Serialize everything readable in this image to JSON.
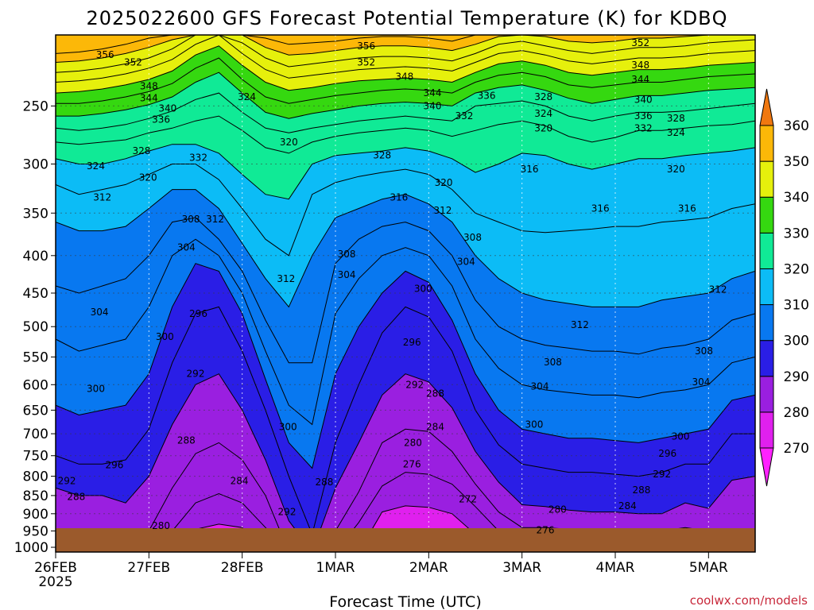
{
  "chart_data": {
    "type": "heatmap",
    "title": "2025022600 GFS Forecast Potential Temperature (K) for KDBQ",
    "xlabel": "Forecast Time (UTC)",
    "ylabel": "",
    "credit": "coolwx.com/models",
    "x_ticks": [
      "26FEB",
      "27FEB",
      "28FEB",
      "1MAR",
      "2MAR",
      "3MAR",
      "4MAR",
      "5MAR"
    ],
    "x_year_label": "2025",
    "x_range_days": [
      0,
      7.5
    ],
    "y_ticks": [
      250,
      300,
      350,
      400,
      450,
      500,
      550,
      600,
      650,
      700,
      750,
      800,
      850,
      900,
      950,
      1000
    ],
    "y_range_hpa": [
      200,
      1015
    ],
    "colorbar": {
      "ticks": [
        270,
        280,
        290,
        300,
        310,
        320,
        330,
        340,
        350,
        360
      ],
      "bins": [
        {
          "from": 260,
          "to": 270,
          "color": "#ff22ff"
        },
        {
          "from": 270,
          "to": 280,
          "color": "#e020ee"
        },
        {
          "from": 280,
          "to": 290,
          "color": "#9a1fe0"
        },
        {
          "from": 290,
          "to": 300,
          "color": "#2a1ee6"
        },
        {
          "from": 300,
          "to": 310,
          "color": "#0878f0"
        },
        {
          "from": 310,
          "to": 320,
          "color": "#0cbcf6"
        },
        {
          "from": 320,
          "to": 330,
          "color": "#10ea96"
        },
        {
          "from": 330,
          "to": 340,
          "color": "#35d810"
        },
        {
          "from": 340,
          "to": 350,
          "color": "#e6f00c"
        },
        {
          "from": 350,
          "to": 360,
          "color": "#fcb808"
        },
        {
          "from": 360,
          "to": 370,
          "color": "#f07810"
        }
      ]
    },
    "ground_color": "#9b5a2c",
    "isentropes": [
      {
        "theta": 276,
        "values": [
          1020,
          1020,
          1020,
          1020,
          1020,
          1020,
          1020,
          1020,
          1020,
          1020,
          1020,
          1020,
          1020,
          1020,
          970,
          960,
          990,
          1020,
          1020,
          1020,
          1020,
          1020,
          1020,
          1020,
          1020,
          1020,
          1020,
          1020,
          1020,
          1020,
          1020
        ]
      },
      {
        "theta": 280,
        "values": [
          1020,
          1020,
          1020,
          1020,
          1020,
          1020,
          945,
          930,
          940,
          1020,
          1020,
          1020,
          1020,
          1020,
          895,
          878,
          882,
          900,
          960,
          1020,
          1020,
          1020,
          1020,
          1020,
          1020,
          1020,
          1020,
          1020,
          1020,
          1020,
          1020
        ]
      },
      {
        "theta": 284,
        "values": [
          1020,
          1020,
          1020,
          1020,
          1020,
          950,
          870,
          845,
          870,
          940,
          1020,
          1020,
          1020,
          925,
          825,
          790,
          795,
          820,
          880,
          950,
          1020,
          1020,
          1020,
          1020,
          1020,
          1020,
          1020,
          1020,
          1020,
          1020,
          1020
        ]
      },
      {
        "theta": 288,
        "values": [
          1020,
          1020,
          1020,
          1020,
          950,
          830,
          745,
          720,
          760,
          850,
          1020,
          1020,
          950,
          840,
          720,
          690,
          695,
          740,
          820,
          895,
          940,
          940,
          945,
          945,
          950,
          950,
          950,
          940,
          950,
          1020,
          1020
        ]
      },
      {
        "theta": 292,
        "values": [
          830,
          850,
          850,
          870,
          800,
          680,
          600,
          580,
          650,
          760,
          920,
          1020,
          830,
          720,
          620,
          580,
          595,
          645,
          740,
          815,
          875,
          880,
          890,
          895,
          895,
          900,
          900,
          870,
          885,
          810,
          800
        ]
      },
      {
        "theta": 296,
        "values": [
          750,
          770,
          770,
          760,
          690,
          560,
          480,
          470,
          540,
          650,
          800,
          960,
          720,
          600,
          510,
          470,
          485,
          540,
          650,
          725,
          770,
          780,
          790,
          790,
          795,
          800,
          790,
          770,
          770,
          700,
          700
        ]
      },
      {
        "theta": 300,
        "values": [
          640,
          660,
          650,
          640,
          580,
          470,
          410,
          420,
          480,
          590,
          720,
          780,
          580,
          500,
          450,
          420,
          435,
          490,
          580,
          650,
          690,
          700,
          710,
          710,
          715,
          720,
          710,
          700,
          690,
          630,
          620
        ]
      },
      {
        "theta": 304,
        "values": [
          520,
          540,
          530,
          520,
          470,
          400,
          380,
          400,
          450,
          540,
          640,
          680,
          480,
          430,
          400,
          390,
          400,
          440,
          520,
          570,
          600,
          610,
          615,
          620,
          620,
          625,
          615,
          610,
          600,
          560,
          550
        ]
      },
      {
        "theta": 308,
        "values": [
          440,
          450,
          440,
          430,
          400,
          360,
          355,
          380,
          420,
          490,
          560,
          560,
          410,
          380,
          365,
          360,
          370,
          400,
          460,
          500,
          520,
          530,
          535,
          540,
          540,
          545,
          535,
          530,
          520,
          490,
          480
        ]
      },
      {
        "theta": 312,
        "values": [
          360,
          370,
          370,
          365,
          345,
          325,
          325,
          345,
          385,
          430,
          470,
          400,
          355,
          345,
          335,
          330,
          340,
          360,
          400,
          430,
          450,
          460,
          465,
          470,
          470,
          470,
          460,
          455,
          450,
          430,
          420
        ]
      },
      {
        "theta": 316,
        "values": [
          320,
          330,
          325,
          320,
          310,
          300,
          300,
          315,
          345,
          380,
          400,
          330,
          318,
          312,
          308,
          305,
          310,
          325,
          350,
          360,
          370,
          372,
          370,
          368,
          365,
          365,
          360,
          358,
          355,
          345,
          340
        ]
      },
      {
        "theta": 320,
        "values": [
          295,
          300,
          300,
          295,
          288,
          282,
          282,
          290,
          310,
          330,
          335,
          300,
          292,
          290,
          288,
          285,
          288,
          295,
          308,
          300,
          290,
          292,
          300,
          305,
          300,
          295,
          295,
          292,
          290,
          288,
          285
        ]
      },
      {
        "theta": 324,
        "values": [
          280,
          282,
          280,
          278,
          272,
          268,
          262,
          258,
          270,
          285,
          290,
          280,
          275,
          272,
          270,
          268,
          270,
          275,
          270,
          265,
          262,
          266,
          275,
          280,
          276,
          270,
          270,
          268,
          266,
          265,
          262
        ]
      },
      {
        "theta": 328,
        "values": [
          268,
          270,
          268,
          265,
          260,
          254,
          245,
          240,
          255,
          268,
          272,
          268,
          265,
          262,
          260,
          258,
          260,
          262,
          250,
          248,
          246,
          250,
          258,
          262,
          258,
          255,
          255,
          254,
          252,
          250,
          248
        ]
      },
      {
        "theta": 332,
        "values": [
          258,
          258,
          256,
          253,
          249,
          243,
          232,
          225,
          240,
          255,
          260,
          256,
          253,
          250,
          248,
          247,
          248,
          250,
          240,
          236,
          234,
          238,
          244,
          248,
          245,
          242,
          242,
          240,
          238,
          237,
          236
        ]
      },
      {
        "theta": 336,
        "values": [
          248,
          248,
          246,
          243,
          239,
          233,
          222,
          215,
          230,
          243,
          248,
          245,
          242,
          240,
          238,
          237,
          238,
          240,
          232,
          227,
          225,
          228,
          234,
          236,
          234,
          232,
          232,
          230,
          228,
          227,
          226
        ]
      },
      {
        "theta": 340,
        "values": [
          240,
          239,
          237,
          234,
          230,
          224,
          213,
          207,
          220,
          232,
          238,
          236,
          233,
          231,
          230,
          229,
          230,
          232,
          225,
          219,
          217,
          220,
          225,
          227,
          225,
          223,
          223,
          222,
          220,
          219,
          218
        ]
      },
      {
        "theta": 344,
        "values": [
          232,
          231,
          229,
          226,
          222,
          216,
          206,
          200,
          212,
          223,
          229,
          227,
          225,
          223,
          222,
          221,
          222,
          224,
          218,
          212,
          210,
          213,
          217,
          219,
          217,
          215,
          215,
          214,
          212,
          211,
          210
        ]
      },
      {
        "theta": 348,
        "values": [
          225,
          224,
          222,
          219,
          215,
          209,
          200,
          200,
          205,
          215,
          221,
          219,
          217,
          215,
          214,
          214,
          215,
          217,
          212,
          206,
          204,
          207,
          210,
          212,
          210,
          208,
          208,
          207,
          205,
          204,
          203
        ]
      },
      {
        "theta": 352,
        "values": [
          218,
          217,
          215,
          212,
          208,
          203,
          200,
          200,
          200,
          208,
          213,
          212,
          210,
          208,
          207,
          207,
          208,
          210,
          206,
          201,
          200,
          201,
          204,
          205,
          204,
          202,
          202,
          201,
          200,
          200,
          200
        ]
      },
      {
        "theta": 356,
        "values": [
          212,
          211,
          209,
          206,
          202,
          200,
          200,
          200,
          200,
          202,
          206,
          205,
          204,
          202,
          201,
          201,
          202,
          204,
          200,
          200,
          200,
          200,
          200,
          200,
          200,
          200,
          200,
          200,
          200,
          200,
          200
        ]
      }
    ],
    "contour_labels": [
      {
        "text": "356",
        "day": 0.53,
        "p": 213
      },
      {
        "text": "352",
        "day": 0.83,
        "p": 218
      },
      {
        "text": "348",
        "day": 1.0,
        "p": 235
      },
      {
        "text": "344",
        "day": 1.0,
        "p": 244
      },
      {
        "text": "340",
        "day": 1.2,
        "p": 252
      },
      {
        "text": "336",
        "day": 1.13,
        "p": 261
      },
      {
        "text": "328",
        "day": 0.92,
        "p": 288
      },
      {
        "text": "332",
        "day": 1.53,
        "p": 294
      },
      {
        "text": "324",
        "day": 0.43,
        "p": 302
      },
      {
        "text": "320",
        "day": 0.99,
        "p": 313
      },
      {
        "text": "312",
        "day": 0.5,
        "p": 333
      },
      {
        "text": "308",
        "day": 1.45,
        "p": 357
      },
      {
        "text": "312",
        "day": 1.71,
        "p": 357
      },
      {
        "text": "304",
        "day": 1.4,
        "p": 390
      },
      {
        "text": "304",
        "day": 0.47,
        "p": 478
      },
      {
        "text": "296",
        "day": 1.53,
        "p": 480
      },
      {
        "text": "300",
        "day": 1.17,
        "p": 516
      },
      {
        "text": "292",
        "day": 1.5,
        "p": 580
      },
      {
        "text": "300",
        "day": 0.43,
        "p": 608
      },
      {
        "text": "288",
        "day": 1.4,
        "p": 715
      },
      {
        "text": "296",
        "day": 0.63,
        "p": 772
      },
      {
        "text": "292",
        "day": 0.12,
        "p": 812
      },
      {
        "text": "284",
        "day": 1.97,
        "p": 812
      },
      {
        "text": "288",
        "day": 0.22,
        "p": 853
      },
      {
        "text": "280",
        "day": 1.13,
        "p": 935
      },
      {
        "text": "324",
        "day": 2.05,
        "p": 243
      },
      {
        "text": "320",
        "day": 2.5,
        "p": 280
      },
      {
        "text": "328",
        "day": 3.5,
        "p": 292
      },
      {
        "text": "348",
        "day": 3.74,
        "p": 228
      },
      {
        "text": "356",
        "day": 3.33,
        "p": 207
      },
      {
        "text": "352",
        "day": 3.33,
        "p": 218
      },
      {
        "text": "344",
        "day": 4.04,
        "p": 240
      },
      {
        "text": "340",
        "day": 4.04,
        "p": 250
      },
      {
        "text": "336",
        "day": 4.62,
        "p": 242
      },
      {
        "text": "332",
        "day": 4.38,
        "p": 258
      },
      {
        "text": "320",
        "day": 4.16,
        "p": 318
      },
      {
        "text": "316",
        "day": 3.68,
        "p": 333
      },
      {
        "text": "312",
        "day": 4.15,
        "p": 347
      },
      {
        "text": "308",
        "day": 4.47,
        "p": 378
      },
      {
        "text": "304",
        "day": 4.4,
        "p": 408
      },
      {
        "text": "308",
        "day": 3.12,
        "p": 398
      },
      {
        "text": "304",
        "day": 3.12,
        "p": 425
      },
      {
        "text": "312",
        "day": 2.47,
        "p": 430
      },
      {
        "text": "300",
        "day": 3.94,
        "p": 444
      },
      {
        "text": "296",
        "day": 3.82,
        "p": 525
      },
      {
        "text": "292",
        "day": 3.85,
        "p": 600
      },
      {
        "text": "288",
        "day": 4.07,
        "p": 617
      },
      {
        "text": "300",
        "day": 2.49,
        "p": 685
      },
      {
        "text": "284",
        "day": 4.07,
        "p": 685
      },
      {
        "text": "280",
        "day": 3.83,
        "p": 720
      },
      {
        "text": "276",
        "day": 3.82,
        "p": 770
      },
      {
        "text": "288",
        "day": 2.88,
        "p": 815
      },
      {
        "text": "272",
        "day": 4.42,
        "p": 860
      },
      {
        "text": "292",
        "day": 2.48,
        "p": 895
      },
      {
        "text": "328",
        "day": 5.23,
        "p": 243
      },
      {
        "text": "324",
        "day": 5.23,
        "p": 256
      },
      {
        "text": "320",
        "day": 5.23,
        "p": 268
      },
      {
        "text": "316",
        "day": 5.08,
        "p": 305
      },
      {
        "text": "312",
        "day": 5.62,
        "p": 497
      },
      {
        "text": "308",
        "day": 5.33,
        "p": 559
      },
      {
        "text": "304",
        "day": 5.19,
        "p": 603
      },
      {
        "text": "300",
        "day": 5.13,
        "p": 680
      },
      {
        "text": "280",
        "day": 5.38,
        "p": 888
      },
      {
        "text": "276",
        "day": 5.25,
        "p": 948
      },
      {
        "text": "352",
        "day": 6.27,
        "p": 205
      },
      {
        "text": "348",
        "day": 6.27,
        "p": 220
      },
      {
        "text": "344",
        "day": 6.27,
        "p": 230
      },
      {
        "text": "340",
        "day": 6.3,
        "p": 245
      },
      {
        "text": "336",
        "day": 6.3,
        "p": 258
      },
      {
        "text": "332",
        "day": 6.3,
        "p": 268
      },
      {
        "text": "328",
        "day": 6.65,
        "p": 260
      },
      {
        "text": "324",
        "day": 6.65,
        "p": 272
      },
      {
        "text": "320",
        "day": 6.65,
        "p": 305
      },
      {
        "text": "316",
        "day": 5.84,
        "p": 345
      },
      {
        "text": "316",
        "day": 6.77,
        "p": 345
      },
      {
        "text": "312",
        "day": 7.1,
        "p": 445
      },
      {
        "text": "308",
        "day": 6.95,
        "p": 540
      },
      {
        "text": "304",
        "day": 6.92,
        "p": 595
      },
      {
        "text": "300",
        "day": 6.7,
        "p": 706
      },
      {
        "text": "296",
        "day": 6.56,
        "p": 745
      },
      {
        "text": "292",
        "day": 6.5,
        "p": 795
      },
      {
        "text": "288",
        "day": 6.28,
        "p": 835
      },
      {
        "text": "284",
        "day": 6.13,
        "p": 878
      }
    ]
  }
}
